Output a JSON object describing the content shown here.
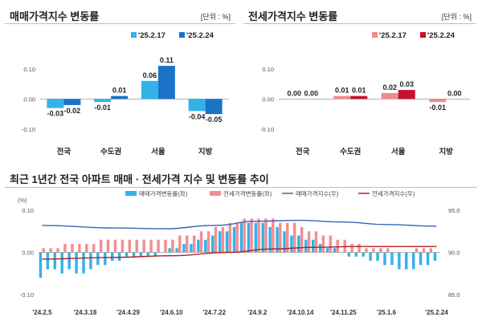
{
  "chart_data": [
    {
      "id": "sales",
      "type": "bar",
      "title": "매매가격지수 변동률",
      "unit_label": "[단위 : %]",
      "categories": [
        "전국",
        "수도권",
        "서울",
        "지방"
      ],
      "ylim": [
        -0.1,
        0.15
      ],
      "yticks": [
        "-0.10",
        "0.00",
        "0.10"
      ],
      "ytick_values": [
        -0.1,
        0.0,
        0.1
      ],
      "grid": false,
      "legend": "top-right",
      "series": [
        {
          "name": "'25.2.17",
          "values": [
            -0.03,
            -0.01,
            0.06,
            -0.04
          ],
          "labels": [
            "-0.03",
            "-0.01",
            "0.06",
            "-0.04"
          ],
          "color": "#33b2e8"
        },
        {
          "name": "'25.2.24",
          "values": [
            -0.02,
            0.01,
            0.11,
            -0.05
          ],
          "labels": [
            "-0.02",
            "0.01",
            "0.11",
            "-0.05"
          ],
          "color": "#1b73c8"
        }
      ]
    },
    {
      "id": "jeonse",
      "type": "bar",
      "title": "전세가격지수 변동률",
      "unit_label": "[단위 : %]",
      "categories": [
        "전국",
        "수도권",
        "서울",
        "지방"
      ],
      "ylim": [
        -0.1,
        0.15
      ],
      "yticks": [
        "-0.10",
        "0.00",
        "0.10"
      ],
      "ytick_values": [
        -0.1,
        0.0,
        0.1
      ],
      "grid": false,
      "legend": "top-right",
      "series": [
        {
          "name": "'25.2.17",
          "values": [
            0.0,
            0.01,
            0.02,
            -0.01
          ],
          "labels": [
            "0.00",
            "0.01",
            "0.02",
            "-0.01"
          ],
          "color": "#f08c8c"
        },
        {
          "name": "'25.2.24",
          "values": [
            0.0,
            0.01,
            0.03,
            0.0
          ],
          "labels": [
            "0.00",
            "0.01",
            "0.03",
            "0.00"
          ],
          "color": "#c8102e"
        }
      ]
    },
    {
      "id": "trend",
      "type": "bar",
      "title": "최근 1년간 전국 아파트 매매 · 전세가격 지수 및 변동률 추이",
      "ylabel_left": "(%)",
      "ylim_left": [
        -0.1,
        0.1
      ],
      "yticks_left": [
        "0.10",
        "0.00",
        "-0.10"
      ],
      "ytick_left_values": [
        0.1,
        0.0,
        -0.1
      ],
      "ylim_right": [
        85.0,
        95.0
      ],
      "yticks_right": [
        "95.0",
        "90.0",
        "85.0"
      ],
      "ytick_right_values": [
        95.0,
        90.0,
        85.0
      ],
      "grid": false,
      "legend": "top",
      "x_tick_labels": [
        "'24.2.5",
        "'24.3.18",
        "'24.4.29",
        "'24.6.10",
        "'24.7.22",
        "'24.9.2",
        "'24.10.14",
        "'24.11.25",
        "'25.1.6",
        "'25.2.24"
      ],
      "x_tick_index": [
        0,
        6,
        12,
        18,
        24,
        30,
        36,
        42,
        48,
        55
      ],
      "series": [
        {
          "name": "매매가격변동률(좌)",
          "kind": "bar",
          "axis": "left",
          "color": "#33b2e8",
          "values": [
            -0.06,
            -0.04,
            -0.04,
            -0.05,
            -0.04,
            -0.05,
            -0.05,
            -0.04,
            -0.03,
            -0.03,
            -0.02,
            -0.02,
            -0.01,
            -0.01,
            -0.01,
            -0.01,
            -0.01,
            0.0,
            0.01,
            0.01,
            0.02,
            0.02,
            0.03,
            0.03,
            0.04,
            0.05,
            0.05,
            0.06,
            0.07,
            0.07,
            0.07,
            0.07,
            0.06,
            0.06,
            0.05,
            0.04,
            0.04,
            0.03,
            0.03,
            0.02,
            0.01,
            0.01,
            0.0,
            -0.01,
            -0.01,
            -0.01,
            -0.02,
            -0.02,
            -0.03,
            -0.03,
            -0.04,
            -0.04,
            -0.04,
            -0.03,
            -0.03,
            -0.02
          ]
        },
        {
          "name": "전세가격변동률(좌)",
          "kind": "bar",
          "axis": "left",
          "color": "#f28e93",
          "values": [
            0.01,
            0.01,
            0.01,
            0.02,
            0.02,
            0.02,
            0.02,
            0.02,
            0.03,
            0.03,
            0.03,
            0.03,
            0.03,
            0.03,
            0.03,
            0.03,
            0.03,
            0.03,
            0.03,
            0.04,
            0.04,
            0.04,
            0.05,
            0.05,
            0.06,
            0.06,
            0.07,
            0.07,
            0.08,
            0.08,
            0.08,
            0.08,
            0.08,
            0.07,
            0.07,
            0.07,
            0.06,
            0.05,
            0.05,
            0.04,
            0.04,
            0.03,
            0.03,
            0.02,
            0.02,
            0.01,
            0.01,
            0.01,
            0.01,
            0.0,
            0.0,
            0.0,
            0.01,
            0.01,
            0.01,
            0.0
          ]
        },
        {
          "name": "매매가격지수(우)",
          "kind": "line",
          "axis": "right",
          "color": "#2f67b8",
          "points": [
            [
              0,
              93.2
            ],
            [
              10,
              92.9
            ],
            [
              17,
              92.8
            ],
            [
              24,
              93.2
            ],
            [
              30,
              93.7
            ],
            [
              36,
              93.8
            ],
            [
              42,
              93.6
            ],
            [
              48,
              93.3
            ],
            [
              55,
              93.1
            ]
          ]
        },
        {
          "name": "전세가격지수(우)",
          "kind": "line",
          "axis": "right",
          "color": "#b0202a",
          "points": [
            [
              0,
              89.2
            ],
            [
              10,
              89.4
            ],
            [
              18,
              89.6
            ],
            [
              26,
              90.0
            ],
            [
              32,
              90.4
            ],
            [
              38,
              90.6
            ],
            [
              44,
              90.7
            ],
            [
              50,
              90.7
            ],
            [
              55,
              90.7
            ]
          ]
        }
      ]
    }
  ]
}
